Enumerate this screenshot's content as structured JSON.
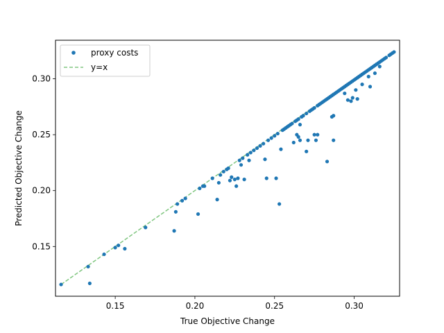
{
  "chart_data": {
    "type": "scatter",
    "title": "",
    "xlabel": "True Objective Change",
    "ylabel": "Predicted Objective Change",
    "xlim": [
      0.1125,
      0.3285
    ],
    "ylim": [
      0.1055,
      0.3345
    ],
    "xticks": [
      0.15,
      0.2,
      0.25,
      0.3
    ],
    "yticks": [
      0.15,
      0.2,
      0.25,
      0.3
    ],
    "xtick_labels": [
      "0.15",
      "0.20",
      "0.25",
      "0.30"
    ],
    "ytick_labels": [
      "0.15",
      "0.20",
      "0.25",
      "0.30"
    ],
    "grid": false,
    "legend": {
      "placement": "top-left",
      "entries": [
        {
          "label": "proxy costs",
          "marker": "circle",
          "color": "#1f77b4"
        },
        {
          "label": "y=x",
          "marker": "dashed-line",
          "color": "#2ca02c"
        }
      ]
    },
    "series": [
      {
        "name": "proxy costs",
        "kind": "scatter",
        "color": "#1f77b4",
        "points": [
          [
            0.116,
            0.116
          ],
          [
            0.133,
            0.132
          ],
          [
            0.134,
            0.117
          ],
          [
            0.143,
            0.143
          ],
          [
            0.15,
            0.149
          ],
          [
            0.152,
            0.151
          ],
          [
            0.156,
            0.148
          ],
          [
            0.169,
            0.167
          ],
          [
            0.187,
            0.164
          ],
          [
            0.188,
            0.181
          ],
          [
            0.189,
            0.188
          ],
          [
            0.192,
            0.191
          ],
          [
            0.194,
            0.193
          ],
          [
            0.202,
            0.179
          ],
          [
            0.203,
            0.202
          ],
          [
            0.205,
            0.204
          ],
          [
            0.206,
            0.204
          ],
          [
            0.211,
            0.211
          ],
          [
            0.214,
            0.192
          ],
          [
            0.215,
            0.207
          ],
          [
            0.216,
            0.214
          ],
          [
            0.218,
            0.217
          ],
          [
            0.22,
            0.219
          ],
          [
            0.221,
            0.22
          ],
          [
            0.222,
            0.209
          ],
          [
            0.223,
            0.212
          ],
          [
            0.225,
            0.21
          ],
          [
            0.226,
            0.204
          ],
          [
            0.227,
            0.211
          ],
          [
            0.228,
            0.227
          ],
          [
            0.229,
            0.223
          ],
          [
            0.23,
            0.229
          ],
          [
            0.231,
            0.21
          ],
          [
            0.233,
            0.232
          ],
          [
            0.234,
            0.227
          ],
          [
            0.235,
            0.234
          ],
          [
            0.237,
            0.236
          ],
          [
            0.239,
            0.238
          ],
          [
            0.241,
            0.24
          ],
          [
            0.243,
            0.242
          ],
          [
            0.244,
            0.228
          ],
          [
            0.245,
            0.211
          ],
          [
            0.246,
            0.245
          ],
          [
            0.248,
            0.247
          ],
          [
            0.25,
            0.249
          ],
          [
            0.251,
            0.211
          ],
          [
            0.252,
            0.251
          ],
          [
            0.253,
            0.188
          ],
          [
            0.254,
            0.237
          ],
          [
            0.255,
            0.254
          ],
          [
            0.256,
            0.255
          ],
          [
            0.257,
            0.256
          ],
          [
            0.258,
            0.257
          ],
          [
            0.259,
            0.258
          ],
          [
            0.26,
            0.259
          ],
          [
            0.261,
            0.26
          ],
          [
            0.262,
            0.243
          ],
          [
            0.263,
            0.262
          ],
          [
            0.264,
            0.25
          ],
          [
            0.264,
            0.263
          ],
          [
            0.265,
            0.248
          ],
          [
            0.265,
            0.264
          ],
          [
            0.266,
            0.245
          ],
          [
            0.266,
            0.259
          ],
          [
            0.267,
            0.266
          ],
          [
            0.268,
            0.267
          ],
          [
            0.27,
            0.235
          ],
          [
            0.27,
            0.269
          ],
          [
            0.271,
            0.245
          ],
          [
            0.272,
            0.271
          ],
          [
            0.273,
            0.272
          ],
          [
            0.274,
            0.273
          ],
          [
            0.275,
            0.25
          ],
          [
            0.275,
            0.274
          ],
          [
            0.276,
            0.245
          ],
          [
            0.277,
            0.25
          ],
          [
            0.277,
            0.276
          ],
          [
            0.278,
            0.277
          ],
          [
            0.279,
            0.278
          ],
          [
            0.28,
            0.279
          ],
          [
            0.281,
            0.28
          ],
          [
            0.282,
            0.281
          ],
          [
            0.283,
            0.226
          ],
          [
            0.283,
            0.282
          ],
          [
            0.284,
            0.283
          ],
          [
            0.285,
            0.284
          ],
          [
            0.286,
            0.266
          ],
          [
            0.286,
            0.285
          ],
          [
            0.287,
            0.245
          ],
          [
            0.287,
            0.286
          ],
          [
            0.287,
            0.267
          ],
          [
            0.288,
            0.287
          ],
          [
            0.289,
            0.288
          ],
          [
            0.29,
            0.289
          ],
          [
            0.291,
            0.29
          ],
          [
            0.292,
            0.291
          ],
          [
            0.293,
            0.292
          ],
          [
            0.294,
            0.287
          ],
          [
            0.294,
            0.293
          ],
          [
            0.295,
            0.294
          ],
          [
            0.296,
            0.281
          ],
          [
            0.296,
            0.295
          ],
          [
            0.297,
            0.296
          ],
          [
            0.298,
            0.28
          ],
          [
            0.298,
            0.297
          ],
          [
            0.299,
            0.283
          ],
          [
            0.299,
            0.298
          ],
          [
            0.3,
            0.299
          ],
          [
            0.301,
            0.29
          ],
          [
            0.301,
            0.3
          ],
          [
            0.302,
            0.282
          ],
          [
            0.302,
            0.301
          ],
          [
            0.303,
            0.302
          ],
          [
            0.304,
            0.303
          ],
          [
            0.305,
            0.295
          ],
          [
            0.305,
            0.304
          ],
          [
            0.306,
            0.305
          ],
          [
            0.307,
            0.306
          ],
          [
            0.308,
            0.307
          ],
          [
            0.309,
            0.302
          ],
          [
            0.309,
            0.308
          ],
          [
            0.31,
            0.293
          ],
          [
            0.31,
            0.309
          ],
          [
            0.311,
            0.31
          ],
          [
            0.312,
            0.311
          ],
          [
            0.313,
            0.305
          ],
          [
            0.313,
            0.312
          ],
          [
            0.314,
            0.313
          ],
          [
            0.315,
            0.314
          ],
          [
            0.316,
            0.311
          ],
          [
            0.316,
            0.315
          ],
          [
            0.317,
            0.316
          ],
          [
            0.318,
            0.317
          ],
          [
            0.319,
            0.318
          ],
          [
            0.32,
            0.319
          ],
          [
            0.322,
            0.321
          ],
          [
            0.323,
            0.322
          ],
          [
            0.324,
            0.323
          ],
          [
            0.325,
            0.324
          ]
        ]
      },
      {
        "name": "y=x",
        "kind": "line",
        "style": "dashed",
        "color": "#2ca02c",
        "x": [
          0.116,
          0.325
        ],
        "y": [
          0.116,
          0.325
        ]
      }
    ]
  }
}
